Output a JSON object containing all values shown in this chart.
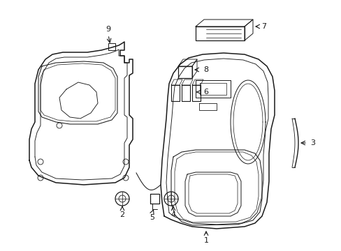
{
  "bg_color": "#ffffff",
  "line_color": "#1a1a1a",
  "lw_main": 1.0,
  "lw_inner": 0.6,
  "lw_thin": 0.5
}
